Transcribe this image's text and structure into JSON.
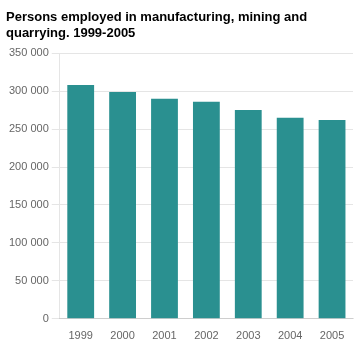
{
  "chart_data": {
    "type": "bar",
    "title": "Persons employed in manufacturing, mining and\nquarrying. 1999-2005",
    "categories": [
      "1999",
      "2000",
      "2001",
      "2002",
      "2003",
      "2004",
      "2005"
    ],
    "values": [
      308000,
      299000,
      290000,
      286000,
      275000,
      265000,
      262000
    ],
    "color": "#2a9090",
    "ylim": [
      0,
      350000
    ],
    "yticks": [
      0,
      {
        "value": 50000,
        "label": "50 000"
      },
      {
        "value": 100000,
        "label": "100 000"
      },
      {
        "value": 150000,
        "label": "150 000"
      },
      {
        "value": 200000,
        "label": "200 000"
      },
      {
        "value": 250000,
        "label": "250 000"
      },
      {
        "value": 300000,
        "label": "300 000"
      },
      {
        "value": 350000,
        "label": "350 000"
      }
    ],
    "grid": true
  }
}
